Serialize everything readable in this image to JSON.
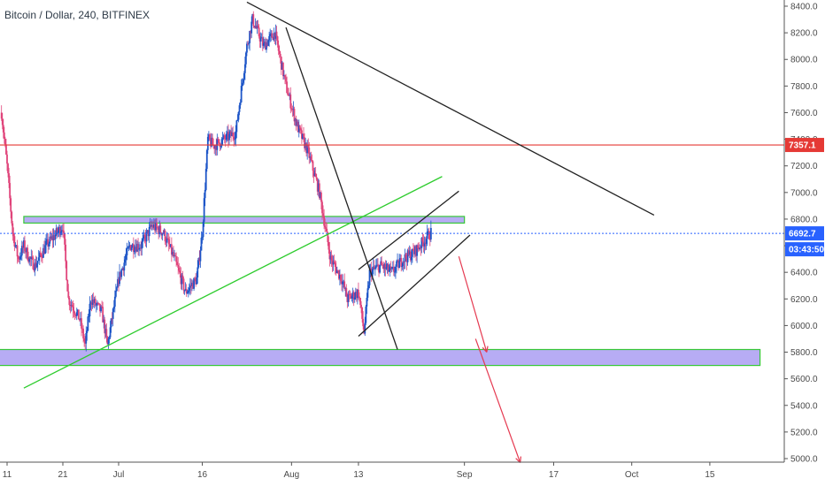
{
  "symbol_title": "Bitcoin / Dollar, 240, BITFINEX",
  "colors": {
    "up": "#1e56c8",
    "down": "#e0457b",
    "resistance": "#e53935",
    "support_fill": "#9b8cf0",
    "support_border": "#37c837",
    "trend_green": "#2ecc2e",
    "trend_black": "#222222",
    "arrow": "#e53950",
    "last_price": "#2962ff"
  },
  "chart_data": {
    "type": "candlestick",
    "symbol": "Bitcoin / Dollar",
    "interval": "240",
    "exchange": "BITFINEX",
    "y_axis": {
      "min": 4950,
      "max": 8450,
      "ticks": [
        5000,
        5200,
        5400,
        5600,
        5800,
        6000,
        6200,
        6400,
        6600,
        6800,
        7000,
        7200,
        7400,
        7600,
        7800,
        8000,
        8200,
        8400
      ]
    },
    "x_axis": {
      "start": "2018-06-11",
      "end": "2018-10-22",
      "ticks": [
        {
          "date": "2018-06-11",
          "label": "11"
        },
        {
          "date": "2018-06-21",
          "label": "21"
        },
        {
          "date": "2018-07-01",
          "label": "Jul"
        },
        {
          "date": "2018-07-16",
          "label": "16"
        },
        {
          "date": "2018-08-01",
          "label": "Aug"
        },
        {
          "date": "2018-08-13",
          "label": "13"
        },
        {
          "date": "2018-09-01",
          "label": "Sep"
        },
        {
          "date": "2018-09-17",
          "label": "17"
        },
        {
          "date": "2018-10-01",
          "label": "Oct"
        },
        {
          "date": "2018-10-15",
          "label": "15"
        }
      ]
    },
    "price_path": [
      [
        "2018-06-10",
        7600
      ],
      [
        "2018-06-11",
        7200
      ],
      [
        "2018-06-12",
        6700
      ],
      [
        "2018-06-13",
        6500
      ],
      [
        "2018-06-14",
        6600
      ],
      [
        "2018-06-15",
        6500
      ],
      [
        "2018-06-16",
        6450
      ],
      [
        "2018-06-18",
        6600
      ],
      [
        "2018-06-20",
        6700
      ],
      [
        "2018-06-21",
        6750
      ],
      [
        "2018-06-22",
        6200
      ],
      [
        "2018-06-24",
        6050
      ],
      [
        "2018-06-25",
        5850
      ],
      [
        "2018-06-26",
        6200
      ],
      [
        "2018-06-28",
        6100
      ],
      [
        "2018-06-29",
        5850
      ],
      [
        "2018-07-01",
        6350
      ],
      [
        "2018-07-03",
        6600
      ],
      [
        "2018-07-05",
        6600
      ],
      [
        "2018-07-07",
        6750
      ],
      [
        "2018-07-09",
        6700
      ],
      [
        "2018-07-11",
        6500
      ],
      [
        "2018-07-13",
        6250
      ],
      [
        "2018-07-15",
        6350
      ],
      [
        "2018-07-16",
        6700
      ],
      [
        "2018-07-17",
        7400
      ],
      [
        "2018-07-18",
        7350
      ],
      [
        "2018-07-20",
        7400
      ],
      [
        "2018-07-22",
        7450
      ],
      [
        "2018-07-24",
        8100
      ],
      [
        "2018-07-25",
        8300
      ],
      [
        "2018-07-27",
        8100
      ],
      [
        "2018-07-29",
        8200
      ],
      [
        "2018-07-31",
        7800
      ],
      [
        "2018-08-02",
        7500
      ],
      [
        "2018-08-04",
        7300
      ],
      [
        "2018-08-06",
        7000
      ],
      [
        "2018-08-08",
        6500
      ],
      [
        "2018-08-10",
        6350
      ],
      [
        "2018-08-11",
        6200
      ],
      [
        "2018-08-13",
        6250
      ],
      [
        "2018-08-14",
        5950
      ],
      [
        "2018-08-15",
        6400
      ],
      [
        "2018-08-17",
        6450
      ],
      [
        "2018-08-19",
        6400
      ],
      [
        "2018-08-21",
        6500
      ],
      [
        "2018-08-23",
        6550
      ],
      [
        "2018-08-25",
        6650
      ],
      [
        "2018-08-26",
        6700
      ]
    ],
    "horizontal_lines": [
      {
        "price": 7357.1,
        "label": "7357.1",
        "color": "#e53935"
      }
    ],
    "last_price": {
      "price": 6692.7,
      "label": "6692.7",
      "countdown": "03:43:50"
    },
    "zones": [
      {
        "x1": "2018-06-14",
        "x2": "2018-09-01",
        "y1": 6770,
        "y2": 6820
      },
      {
        "x1": "2018-06-04",
        "x2": "2018-10-24",
        "y1": 5700,
        "y2": 5820
      }
    ],
    "trendlines": [
      {
        "color": "#2ecc2e",
        "from": [
          "2018-06-14",
          5530
        ],
        "to": [
          "2018-08-28",
          7120
        ]
      },
      {
        "color": "#222222",
        "from": [
          "2018-07-24",
          8430
        ],
        "to": [
          "2018-10-05",
          6830
        ]
      },
      {
        "color": "#222222",
        "from": [
          "2018-07-31",
          8240
        ],
        "to": [
          "2018-08-20",
          5820
        ]
      },
      {
        "color": "#222222",
        "from": [
          "2018-08-13",
          6420
        ],
        "to": [
          "2018-08-31",
          7010
        ]
      },
      {
        "color": "#222222",
        "from": [
          "2018-08-13",
          5920
        ],
        "to": [
          "2018-09-02",
          6680
        ]
      }
    ],
    "arrows": [
      {
        "from": [
          "2018-08-31",
          6520
        ],
        "to": [
          "2018-09-05",
          5800
        ]
      },
      {
        "from": [
          "2018-09-03",
          5900
        ],
        "to": [
          "2018-09-11",
          4970
        ]
      }
    ]
  }
}
